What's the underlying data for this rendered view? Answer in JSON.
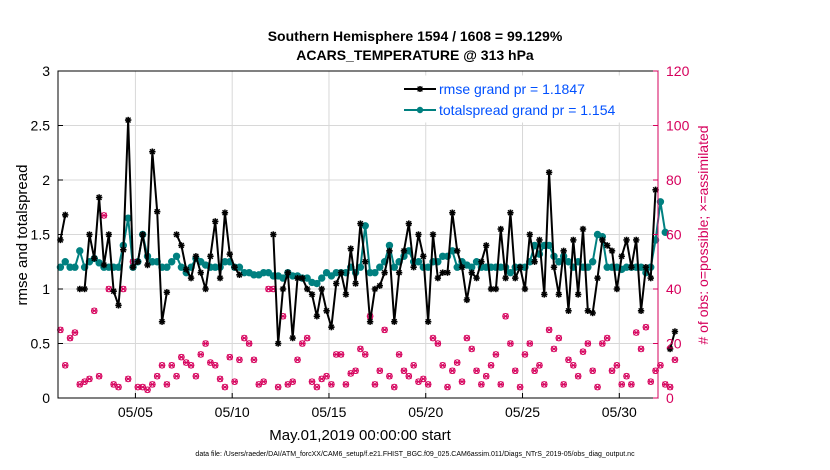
{
  "chart_data": {
    "type": "line",
    "title": "Southern Hemisphere 1594 / 1608 = 99.129%",
    "subtitle": "ACARS_TEMPERATURE @ 313 hPa",
    "xlabel": "May.01,2019 00:00:00 start",
    "ylabel_left": "rmse and totalspread",
    "ylabel_right": "# of obs: o=possible; ×=assimilated",
    "ylim_left": [
      0,
      3
    ],
    "ylim_right": [
      0,
      120
    ],
    "xlim": [
      1.0,
      32.0
    ],
    "x_tick_values": [
      5,
      10,
      15,
      20,
      25,
      30
    ],
    "x_tick_labels": [
      "05/05",
      "05/10",
      "05/15",
      "05/20",
      "05/25",
      "05/30"
    ],
    "y_left_ticks": [
      "0",
      "0.5",
      "1",
      "1.5",
      "2",
      "2.5",
      "3"
    ],
    "y_right_ticks": [
      "0",
      "20",
      "40",
      "60",
      "80",
      "100",
      "120"
    ],
    "legend": [
      {
        "label": "rmse grand pr = 1.1847",
        "color": "#000000"
      },
      {
        "label": "totalspread grand pr = 1.154",
        "color": "#008080"
      }
    ],
    "footnote": "data file: /Users/raeder/DAI/ATM_forcXX/CAM6_setup/f.e21.FHIST_BGC.f09_025.CAM6assim.011/Diags_NTrS_2019-05/obs_diag_output.nc",
    "x_step": 0.25,
    "x_start": 1.125,
    "series": [
      {
        "name": "rmse",
        "color": "#000000",
        "values": [
          1.45,
          1.68,
          null,
          null,
          1.0,
          1.0,
          1.5,
          1.28,
          1.84,
          1.22,
          1.5,
          0.98,
          0.85,
          1.36,
          2.55,
          1.2,
          1.25,
          1.5,
          1.22,
          2.26,
          1.71,
          0.7,
          0.97,
          null,
          1.5,
          1.4,
          1.18,
          1.1,
          1.3,
          1.15,
          1.0,
          1.3,
          1.62,
          1.1,
          1.7,
          1.32,
          1.2,
          1.13,
          null,
          null,
          null,
          null,
          null,
          null,
          1.5,
          0.5,
          1.0,
          1.15,
          0.55,
          1.1,
          1.1,
          1.0,
          0.95,
          0.75,
          1.0,
          0.8,
          0.65,
          1.05,
          1.15,
          0.95,
          1.37,
          1.05,
          1.6,
          1.25,
          0.7,
          1.0,
          1.03,
          1.15,
          1.35,
          0.7,
          1.15,
          1.35,
          1.6,
          1.2,
          1.5,
          1.3,
          0.7,
          1.5,
          1.1,
          1.15,
          1.15,
          1.7,
          1.35,
          1.2,
          0.9,
          1.15,
          1.1,
          1.25,
          1.4,
          1.0,
          1.0,
          1.55,
          1.1,
          1.7,
          1.1,
          1.2,
          1.0,
          1.5,
          1.25,
          1.45,
          0.95,
          2.07,
          1.2,
          0.95,
          1.35,
          0.8,
          1.45,
          0.95,
          1.55,
          0.8,
          0.78,
          1.1,
          1.45,
          1.4,
          1.35,
          1.0,
          1.3,
          1.45,
          1.2,
          1.45,
          0.8,
          1.2,
          1.1,
          1.91,
          null,
          null,
          0.45,
          0.61
        ]
      },
      {
        "name": "totalspread",
        "color": "#008080",
        "values": [
          1.2,
          1.25,
          1.2,
          1.2,
          1.35,
          1.2,
          1.25,
          1.28,
          1.24,
          1.2,
          1.2,
          1.2,
          1.2,
          1.4,
          1.65,
          1.2,
          1.25,
          1.5,
          1.3,
          1.25,
          1.25,
          1.2,
          1.2,
          1.25,
          1.3,
          1.2,
          1.15,
          1.2,
          1.28,
          1.25,
          1.22,
          1.2,
          1.2,
          1.2,
          1.25,
          1.25,
          1.2,
          1.2,
          1.15,
          1.15,
          1.13,
          1.13,
          1.15,
          1.15,
          1.12,
          1.12,
          1.1,
          1.15,
          1.12,
          1.12,
          1.1,
          1.1,
          1.06,
          1.05,
          1.1,
          1.15,
          1.12,
          1.15,
          1.15,
          1.15,
          1.2,
          1.15,
          1.2,
          1.58,
          1.15,
          1.15,
          1.2,
          1.25,
          1.4,
          1.2,
          1.25,
          1.3,
          1.35,
          1.25,
          1.25,
          1.2,
          1.2,
          1.25,
          1.25,
          1.3,
          1.3,
          1.35,
          1.2,
          1.25,
          1.22,
          1.2,
          1.25,
          1.2,
          1.2,
          1.2,
          1.2,
          1.2,
          1.2,
          1.15,
          1.2,
          1.2,
          1.2,
          1.25,
          1.4,
          1.32,
          1.4,
          1.4,
          1.3,
          1.25,
          1.3,
          1.25,
          1.2,
          1.25,
          1.2,
          1.2,
          1.25,
          1.5,
          1.48,
          1.2,
          1.2,
          1.2,
          1.18,
          1.2,
          1.2,
          1.2,
          1.2,
          1.15,
          1.2,
          1.45,
          1.8,
          1.52
        ]
      },
      {
        "name": "obs possible",
        "color": "#d6005c",
        "values": [
          25,
          12,
          22,
          24,
          5,
          6,
          7,
          32,
          8,
          67,
          40,
          5,
          4,
          40,
          7,
          50,
          4,
          4,
          3,
          5,
          8,
          12,
          5,
          12,
          8,
          15,
          13,
          12,
          8,
          16,
          20,
          13,
          12,
          7,
          4,
          15,
          6,
          14,
          22,
          20,
          14,
          5,
          6,
          40,
          40,
          4,
          30,
          5,
          6,
          14,
          20,
          22,
          6,
          4,
          7,
          8,
          5,
          16,
          16,
          5,
          9,
          10,
          18,
          16,
          30,
          5,
          10,
          25,
          8,
          4,
          16,
          10,
          8,
          12,
          6,
          7,
          5,
          22,
          20,
          12,
          4,
          10,
          13,
          6,
          22,
          18,
          10,
          5,
          8,
          12,
          16,
          5,
          30,
          20,
          10,
          4,
          16,
          20,
          10,
          12,
          5,
          25,
          18,
          22,
          5,
          14,
          12,
          8,
          17,
          20,
          10,
          4,
          20,
          22,
          10,
          12,
          5,
          8,
          5,
          24,
          18,
          26,
          6,
          10,
          12,
          5,
          4,
          14
        ]
      },
      {
        "name": "obs assimilated",
        "color": "#d6005c",
        "values": [
          25,
          12,
          22,
          24,
          5,
          6,
          7,
          32,
          8,
          67,
          40,
          5,
          4,
          40,
          7,
          50,
          4,
          4,
          3,
          5,
          8,
          12,
          5,
          12,
          8,
          15,
          13,
          12,
          8,
          16,
          20,
          13,
          12,
          7,
          4,
          15,
          6,
          14,
          22,
          20,
          14,
          5,
          6,
          40,
          40,
          4,
          30,
          5,
          6,
          14,
          20,
          22,
          6,
          4,
          7,
          8,
          5,
          16,
          16,
          5,
          9,
          10,
          18,
          16,
          30,
          5,
          10,
          25,
          8,
          4,
          16,
          10,
          8,
          12,
          6,
          7,
          5,
          22,
          20,
          12,
          4,
          10,
          13,
          6,
          22,
          18,
          10,
          5,
          8,
          12,
          16,
          5,
          30,
          20,
          10,
          4,
          16,
          20,
          10,
          12,
          5,
          25,
          18,
          22,
          5,
          14,
          12,
          8,
          17,
          20,
          10,
          4,
          20,
          22,
          10,
          12,
          5,
          8,
          5,
          24,
          18,
          26,
          6,
          10,
          12,
          5,
          4,
          14
        ]
      }
    ]
  }
}
